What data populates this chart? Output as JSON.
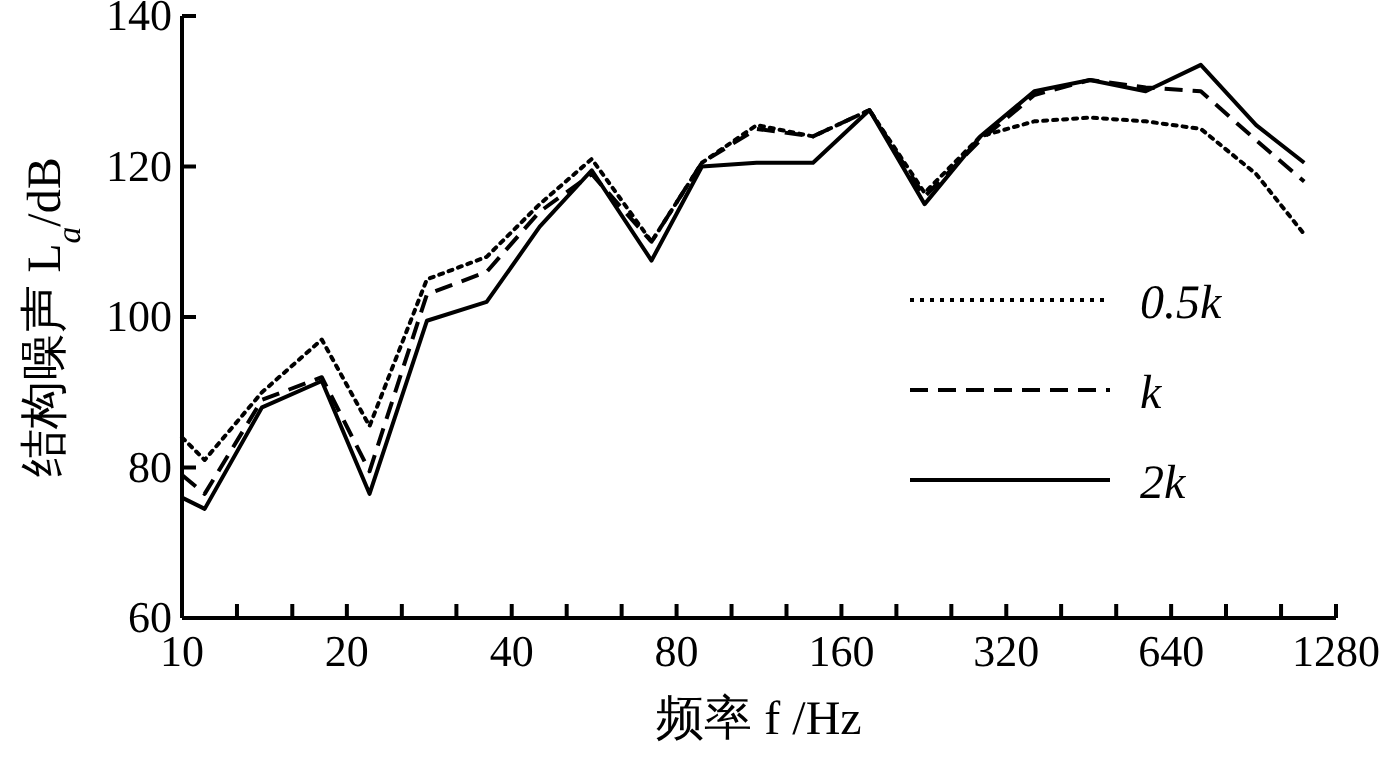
{
  "chart_data": {
    "type": "line",
    "xlabel": "频率 f /Hz",
    "ylabel": "结构噪声 L$_{a}$/dB",
    "log": "x",
    "legend": "right",
    "grid": false,
    "x": [
      10,
      11,
      14,
      18,
      22,
      28,
      36,
      45,
      56,
      72,
      89,
      112,
      142,
      180,
      227,
      287,
      360,
      455,
      575,
      725,
      915,
      1120
    ],
    "xlim": [
      10,
      1280
    ],
    "xticks": [
      10,
      {
        "value": 12.6,
        "label": null
      },
      {
        "value": 15.9,
        "label": null
      },
      20,
      {
        "value": 25.2,
        "label": null
      },
      {
        "value": 31.7,
        "label": null
      },
      40,
      {
        "value": 50.4,
        "label": null
      },
      {
        "value": 63.5,
        "label": null
      },
      80,
      {
        "value": 100.8,
        "label": null
      },
      {
        "value": 127,
        "label": null
      },
      160,
      {
        "value": 201.6,
        "label": null
      },
      {
        "value": 254,
        "label": null
      },
      320,
      {
        "value": 403,
        "label": null
      },
      {
        "value": 508,
        "label": null
      },
      640,
      {
        "value": 806,
        "label": null
      },
      {
        "value": 1016,
        "label": null
      },
      1280
    ],
    "ylim": [
      60,
      140
    ],
    "yticks": [
      60,
      80,
      100,
      120,
      140
    ],
    "series": [
      {
        "name": "0.5k",
        "color": "#000000",
        "line_style": "dotted",
        "values": [
          84,
          81,
          90,
          97,
          85.5,
          105,
          108,
          115,
          121,
          110,
          120.5,
          125.5,
          124,
          127.5,
          116.5,
          124,
          126,
          126.5,
          126,
          125,
          119,
          111
        ]
      },
      {
        "name": "k",
        "color": "#000000",
        "line_style": "dashed",
        "values": [
          79,
          76.5,
          89,
          92,
          79.5,
          103,
          106,
          114,
          119,
          110,
          120.5,
          125,
          124,
          127.5,
          116,
          123.5,
          129.5,
          131.5,
          130.5,
          130,
          123.5,
          118
        ]
      },
      {
        "name": "2k",
        "color": "#000000",
        "line_style": "solid",
        "values": [
          76,
          74.5,
          88,
          91.5,
          76.5,
          99.5,
          102,
          112,
          119.5,
          107.5,
          120,
          120.5,
          120.5,
          127.5,
          115,
          124,
          130,
          131.5,
          130,
          133.5,
          125.5,
          120.5
        ]
      }
    ]
  }
}
